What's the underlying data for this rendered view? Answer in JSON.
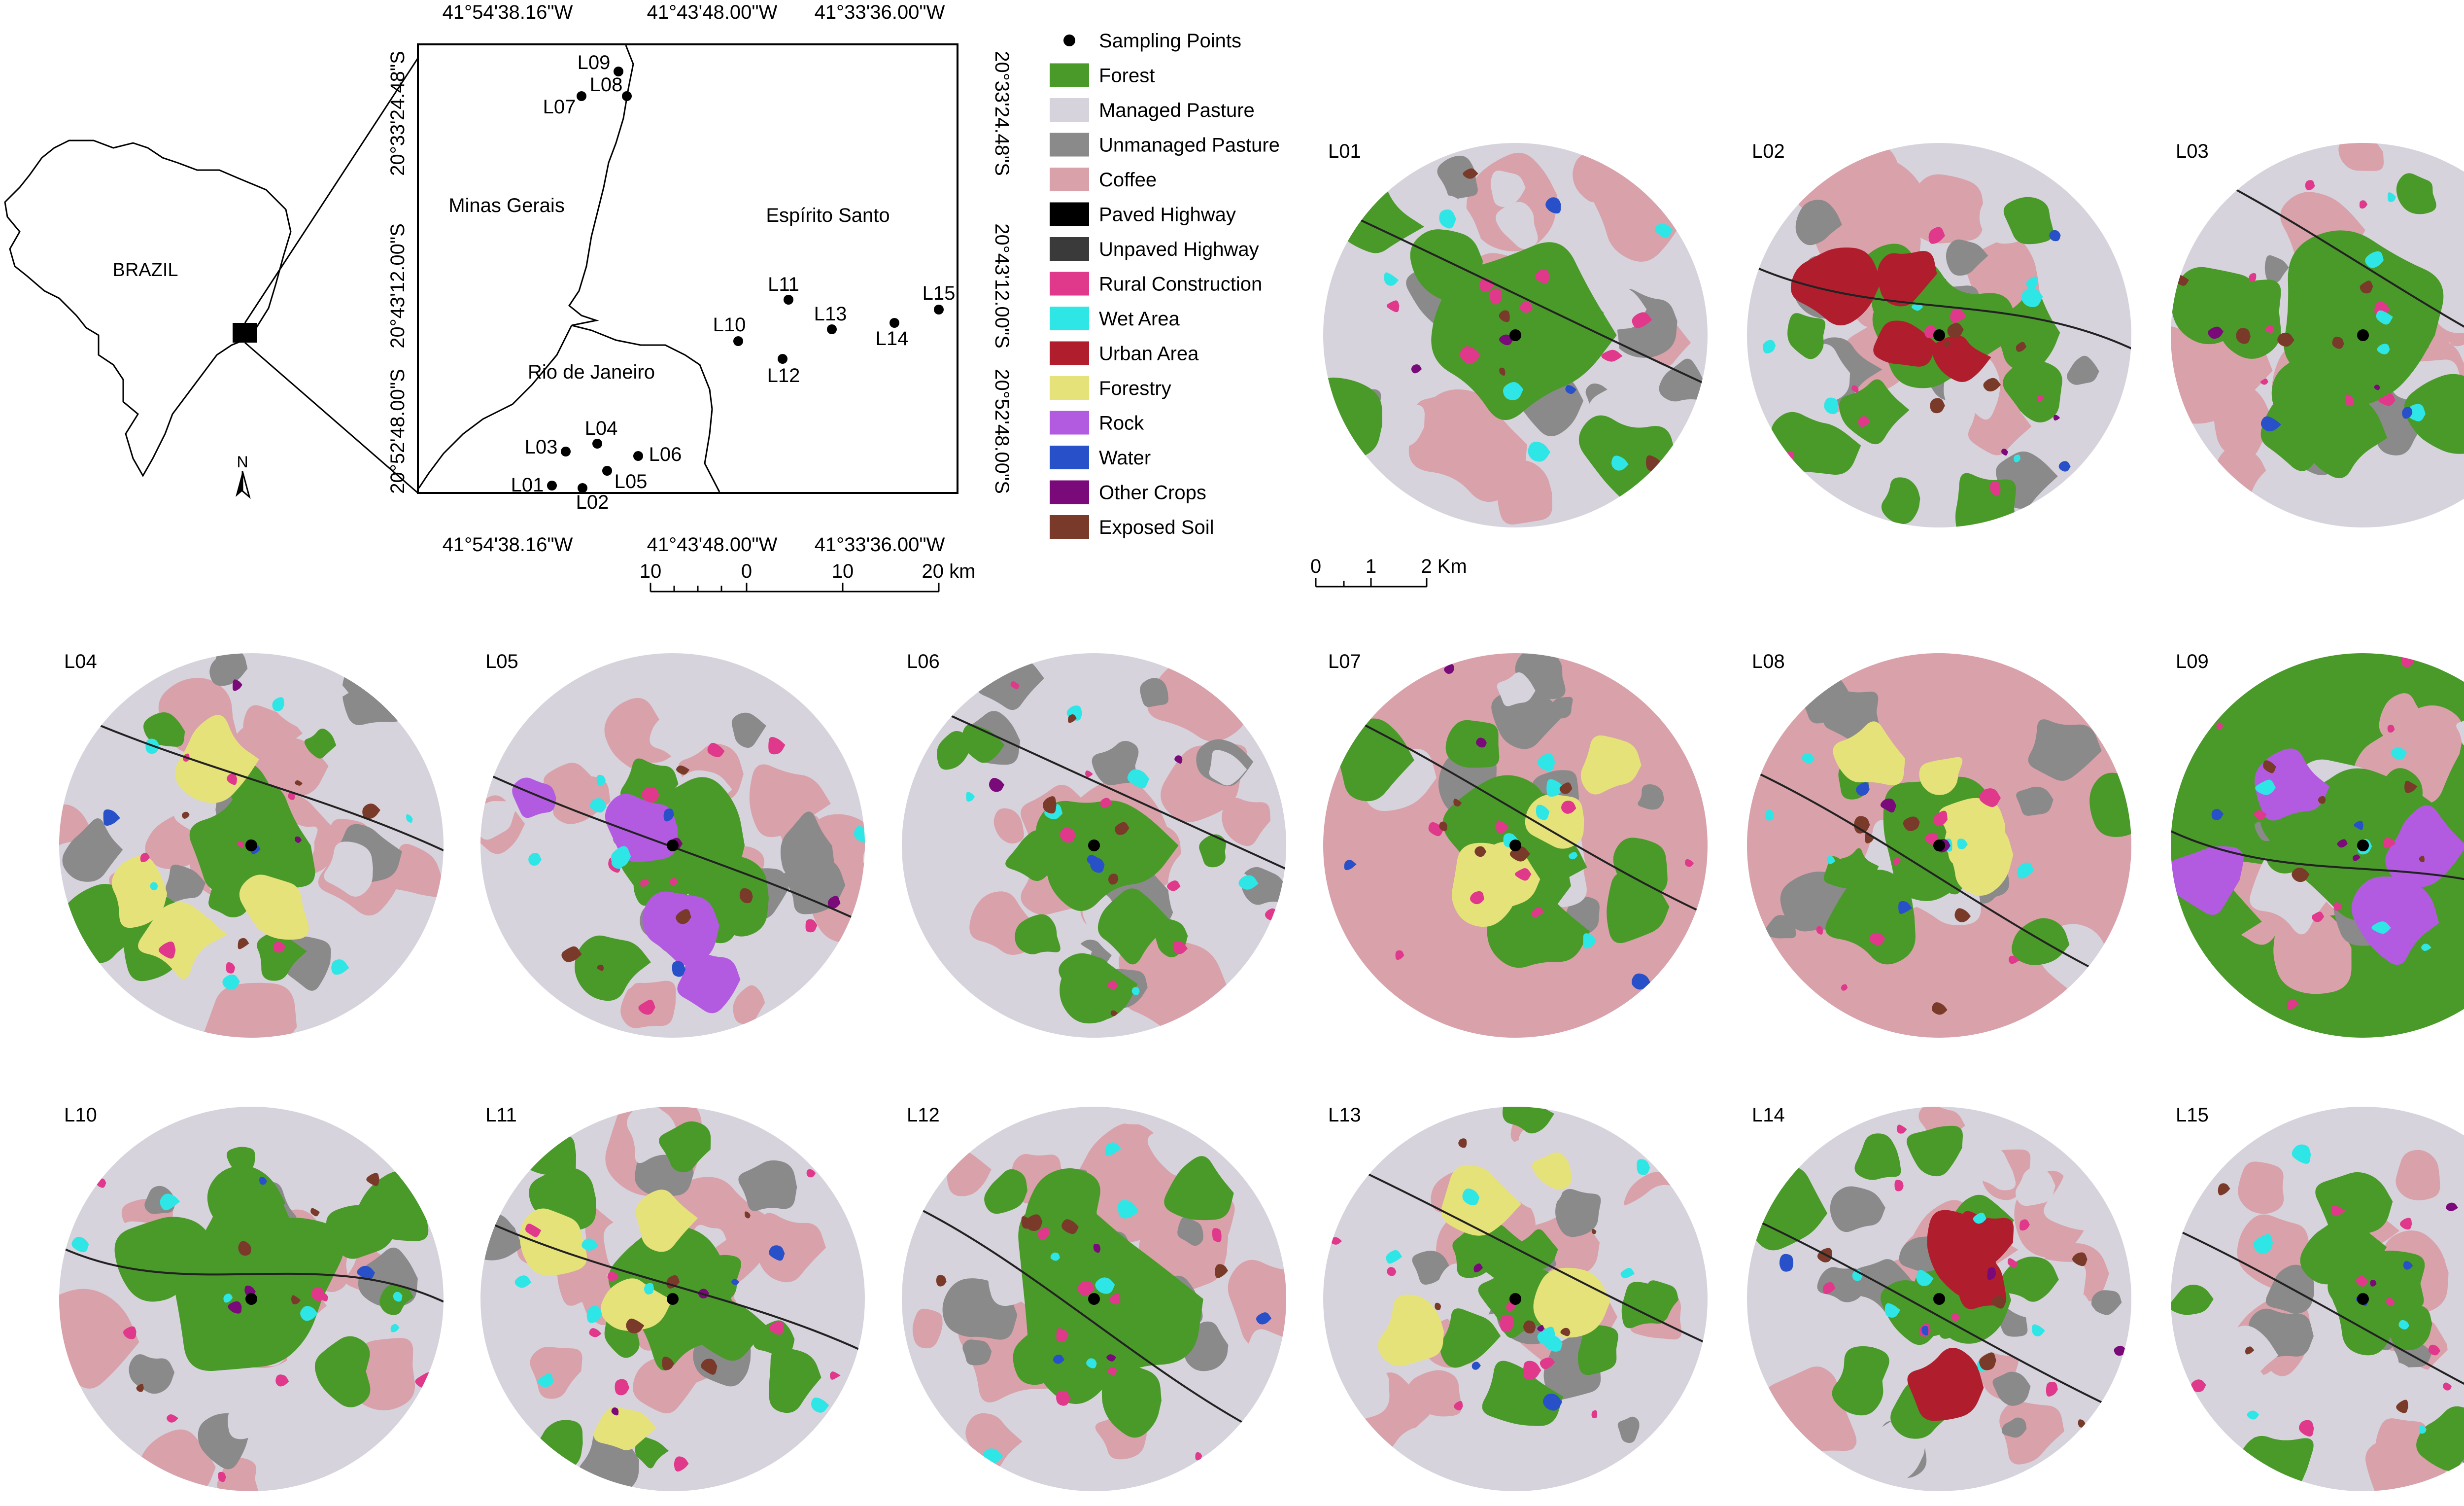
{
  "country_label": "BRAZIL",
  "north_label": "N",
  "states": [
    "Minas Gerais",
    "Espírito Santo",
    "Rio de Janeiro"
  ],
  "longitudes": [
    "41°54'38.16\"W",
    "41°43'48.00\"W",
    "41°33'36.00\"W"
  ],
  "latitudes": [
    "20°33'24.48\"S",
    "20°43'12.00\"S",
    "20°52'48.00\"S"
  ],
  "points": [
    {
      "id": "L01"
    },
    {
      "id": "L02"
    },
    {
      "id": "L03"
    },
    {
      "id": "L04"
    },
    {
      "id": "L05"
    },
    {
      "id": "L06"
    },
    {
      "id": "L07"
    },
    {
      "id": "L08"
    },
    {
      "id": "L09"
    },
    {
      "id": "L10"
    },
    {
      "id": "L11"
    },
    {
      "id": "L12"
    },
    {
      "id": "L13"
    },
    {
      "id": "L14"
    },
    {
      "id": "L15"
    }
  ],
  "scale_main": {
    "ticks": [
      "10",
      "0",
      "10",
      "20 km"
    ]
  },
  "scale_circles": {
    "ticks": [
      "0",
      "1",
      "2 Km"
    ]
  },
  "legend": [
    {
      "label": "Sampling Points",
      "color": "#000000",
      "symbol": "dot"
    },
    {
      "label": "Forest",
      "color": "#4a9a2a"
    },
    {
      "label": "Managed Pasture",
      "color": "#d6d3dc"
    },
    {
      "label": "Unmanaged Pasture",
      "color": "#8a8a8a"
    },
    {
      "label": "Coffee",
      "color": "#d9a1aa"
    },
    {
      "label": "Paved Highway",
      "color": "#000000"
    },
    {
      "label": "Unpaved Highway",
      "color": "#3a3a3a"
    },
    {
      "label": "Rural Construction",
      "color": "#e0388a"
    },
    {
      "label": "Wet Area",
      "color": "#2ee6e6"
    },
    {
      "label": "Urban Area",
      "color": "#b01e2e"
    },
    {
      "label": "Forestry",
      "color": "#e6e27a"
    },
    {
      "label": "Rock",
      "color": "#b35be0"
    },
    {
      "label": "Water",
      "color": "#2850c8"
    },
    {
      "label": "Other Crops",
      "color": "#7a0a7a"
    },
    {
      "label": "Exposed Soil",
      "color": "#7a3a2a"
    }
  ],
  "circles": [
    {
      "id": "L01",
      "base": "pasture",
      "forest": "large"
    },
    {
      "id": "L02",
      "base": "pasture",
      "forest": "medium",
      "extra": "urban"
    },
    {
      "id": "L03",
      "base": "pasture",
      "forest": "large"
    },
    {
      "id": "L04",
      "base": "pasture",
      "forest": "medium",
      "extra": "forestry"
    },
    {
      "id": "L05",
      "base": "pasture",
      "forest": "medium",
      "extra": "rock"
    },
    {
      "id": "L06",
      "base": "pasture",
      "forest": "medium"
    },
    {
      "id": "L07",
      "base": "coffee",
      "forest": "medium",
      "extra": "forestry"
    },
    {
      "id": "L08",
      "base": "coffee",
      "forest": "medium",
      "extra": "forestry"
    },
    {
      "id": "L09",
      "base": "forest",
      "forest": "large",
      "extra": "rock"
    },
    {
      "id": "L10",
      "base": "pasture",
      "forest": "large"
    },
    {
      "id": "L11",
      "base": "pasture",
      "forest": "medium",
      "extra": "forestry"
    },
    {
      "id": "L12",
      "base": "pasture",
      "forest": "large"
    },
    {
      "id": "L13",
      "base": "pasture",
      "forest": "small",
      "extra": "forestry"
    },
    {
      "id": "L14",
      "base": "pasture",
      "forest": "small",
      "extra": "urban"
    },
    {
      "id": "L15",
      "base": "pasture",
      "forest": "small"
    }
  ]
}
